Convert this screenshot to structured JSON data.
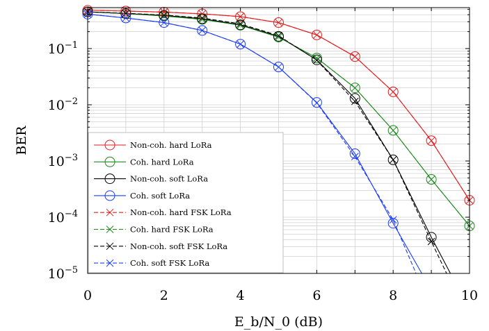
{
  "chart_data": {
    "type": "line",
    "xlabel": "E_b/N_0 (dB)",
    "ylabel": "BER",
    "xlim": [
      0,
      10
    ],
    "ylim": [
      1e-05,
      0.5
    ],
    "y_scale": "log",
    "grid": true,
    "legend_placement": "bottom-left",
    "x_ticks": [
      0,
      2,
      4,
      6,
      8,
      10
    ],
    "x_tick_labels": [
      "0",
      "2",
      "4",
      "6",
      "8",
      "10"
    ],
    "y_ticks": [
      {
        "value": 0.1,
        "base": "10",
        "exp": "−1"
      },
      {
        "value": 0.01,
        "base": "10",
        "exp": "−2"
      },
      {
        "value": 0.001,
        "base": "10",
        "exp": "−3"
      },
      {
        "value": 0.0001,
        "base": "10",
        "exp": "−4"
      },
      {
        "value": 1e-05,
        "base": "10",
        "exp": "−5"
      }
    ],
    "series": [
      {
        "name": "Non-coh. hard LoRa",
        "color": "#e41a1c",
        "style": "solid",
        "marker": "circle",
        "x": [
          0,
          1,
          2,
          3,
          4,
          5,
          6,
          7,
          8,
          9,
          10
        ],
        "y": [
          0.48,
          0.465,
          0.445,
          0.415,
          0.37,
          0.29,
          0.175,
          0.072,
          0.017,
          0.0023,
          0.0002
        ]
      },
      {
        "name": "Coh. hard LoRa",
        "color": "#1a8a1a",
        "style": "solid",
        "marker": "circle",
        "x": [
          0,
          1,
          2,
          3,
          4,
          5,
          6,
          7,
          8,
          9,
          10
        ],
        "y": [
          0.45,
          0.42,
          0.38,
          0.33,
          0.26,
          0.16,
          0.068,
          0.02,
          0.0035,
          0.00047,
          7e-05
        ]
      },
      {
        "name": "Non-coh. soft LoRa",
        "color": "#000000",
        "style": "solid",
        "marker": "circle",
        "x": [
          0,
          1,
          2,
          3,
          4,
          5,
          6,
          7,
          8,
          9,
          9.5
        ],
        "y": [
          0.45,
          0.42,
          0.39,
          0.34,
          0.265,
          0.165,
          0.063,
          0.013,
          0.00105,
          4.4e-05,
          1e-05
        ]
      },
      {
        "name": "Coh. soft LoRa",
        "color": "#1a3aff",
        "style": "solid",
        "marker": "circle",
        "x": [
          0,
          1,
          2,
          3,
          4,
          5,
          6,
          7,
          8,
          8.75
        ],
        "y": [
          0.41,
          0.35,
          0.29,
          0.21,
          0.12,
          0.047,
          0.011,
          0.00135,
          7.8e-05,
          1e-05
        ]
      },
      {
        "name": "Non-coh. hard FSK LoRa",
        "color": "#e41a1c",
        "style": "dashed",
        "marker": "x",
        "x": [
          0,
          1,
          2,
          3,
          4,
          5,
          6,
          7,
          8,
          9,
          10
        ],
        "y": [
          0.48,
          0.465,
          0.445,
          0.415,
          0.37,
          0.29,
          0.175,
          0.072,
          0.017,
          0.0023,
          0.0002
        ]
      },
      {
        "name": "Coh. hard FSK LoRa",
        "color": "#1a8a1a",
        "style": "dashed",
        "marker": "x",
        "x": [
          0,
          1,
          2,
          3,
          4,
          5,
          6,
          7,
          8,
          9,
          10
        ],
        "y": [
          0.45,
          0.42,
          0.38,
          0.33,
          0.26,
          0.16,
          0.068,
          0.02,
          0.0035,
          0.00047,
          7e-05
        ]
      },
      {
        "name": "Non-coh. soft FSK LoRa",
        "color": "#000000",
        "style": "dashed",
        "marker": "x",
        "x": [
          0,
          1,
          2,
          3,
          4,
          5,
          6,
          7,
          8,
          9,
          9.4
        ],
        "y": [
          0.45,
          0.425,
          0.395,
          0.35,
          0.275,
          0.17,
          0.062,
          0.0115,
          0.00105,
          3.7e-05,
          1e-05
        ]
      },
      {
        "name": "Coh. soft FSK LoRa",
        "color": "#1a3aff",
        "style": "dashed",
        "marker": "x",
        "x": [
          0,
          1,
          2,
          3,
          4,
          5,
          6,
          7,
          8,
          8.6
        ],
        "y": [
          0.41,
          0.35,
          0.29,
          0.21,
          0.12,
          0.047,
          0.0108,
          0.0012,
          9e-05,
          1e-05
        ]
      }
    ]
  }
}
